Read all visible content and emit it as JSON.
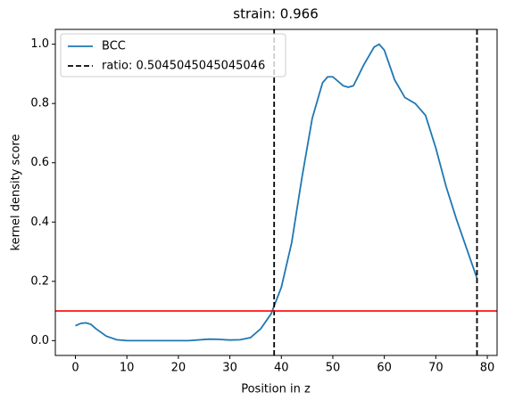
{
  "chart_data": {
    "type": "line",
    "title": "strain: 0.966",
    "xlabel": "Position in z",
    "ylabel": "kernel density score",
    "xlim": [
      -3.9,
      81.9
    ],
    "ylim": [
      -0.05,
      1.05
    ],
    "xticks": [
      0,
      10,
      20,
      30,
      40,
      50,
      60,
      70,
      80
    ],
    "yticks": [
      {
        "value": 0,
        "label": "0.0"
      },
      {
        "value": 0.2,
        "label": "0.2"
      },
      {
        "value": 0.4,
        "label": "0.4"
      },
      {
        "value": 0.6,
        "label": "0.6"
      },
      {
        "value": 0.8,
        "label": "0.8"
      },
      {
        "value": 1,
        "label": "1.0"
      }
    ],
    "series": [
      {
        "name": "BCC",
        "color": "#1f77b4",
        "x": [
          0,
          1,
          2,
          3,
          4,
          6,
          8,
          10,
          14,
          18,
          22,
          26,
          28,
          30,
          32,
          34,
          36,
          38,
          40,
          42,
          44,
          46,
          48,
          49,
          50,
          52,
          53,
          54,
          56,
          58,
          59,
          60,
          62,
          64,
          66,
          68,
          70,
          72,
          74,
          76,
          78
        ],
        "values": [
          0.05,
          0.058,
          0.06,
          0.055,
          0.04,
          0.015,
          0.003,
          0.0,
          0.0,
          0.0,
          0.0,
          0.005,
          0.004,
          0.002,
          0.003,
          0.01,
          0.04,
          0.09,
          0.18,
          0.33,
          0.55,
          0.75,
          0.87,
          0.89,
          0.89,
          0.86,
          0.855,
          0.86,
          0.93,
          0.99,
          1.0,
          0.98,
          0.88,
          0.82,
          0.8,
          0.76,
          0.65,
          0.52,
          0.41,
          0.31,
          0.21
        ]
      }
    ],
    "vlines": {
      "name": "ratio: 0.5045045045045046",
      "x": [
        38.6,
        78
      ],
      "color": "#000000",
      "style": "dashed"
    },
    "hline": {
      "y": 0.1,
      "color": "#ff0000"
    },
    "legend": "upper left"
  }
}
